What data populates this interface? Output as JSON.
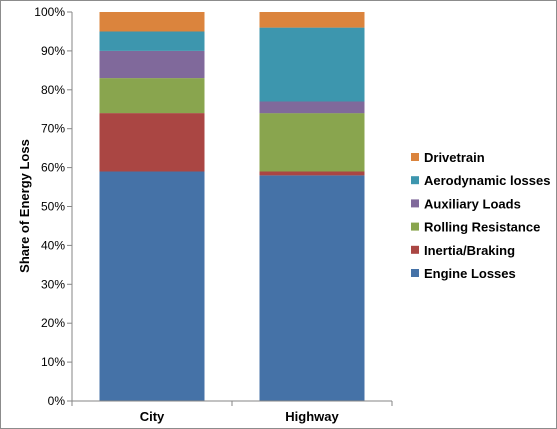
{
  "chart_data": {
    "type": "bar",
    "stacked": true,
    "categories": [
      "City",
      "Highway"
    ],
    "ylabel": "Share of Energy Loss",
    "ylim": [
      0,
      100
    ],
    "yticks": [
      0,
      10,
      20,
      30,
      40,
      50,
      60,
      70,
      80,
      90,
      100
    ],
    "ytick_suffix": "%",
    "grid": false,
    "legend_position": "right",
    "series": [
      {
        "name": "Engine Losses",
        "color": "#4572A7",
        "values": [
          59,
          58
        ]
      },
      {
        "name": "Inertia/Braking",
        "color": "#AA4643",
        "values": [
          15,
          1
        ]
      },
      {
        "name": "Rolling Resistance",
        "color": "#89A54E",
        "values": [
          9,
          15
        ]
      },
      {
        "name": "Auxiliary Loads",
        "color": "#80699B",
        "values": [
          7,
          3
        ]
      },
      {
        "name": "Aerodynamic losses",
        "color": "#3D96AE",
        "values": [
          5,
          19
        ]
      },
      {
        "name": "Drivetrain",
        "color": "#DB843D",
        "values": [
          5,
          4
        ]
      }
    ]
  }
}
